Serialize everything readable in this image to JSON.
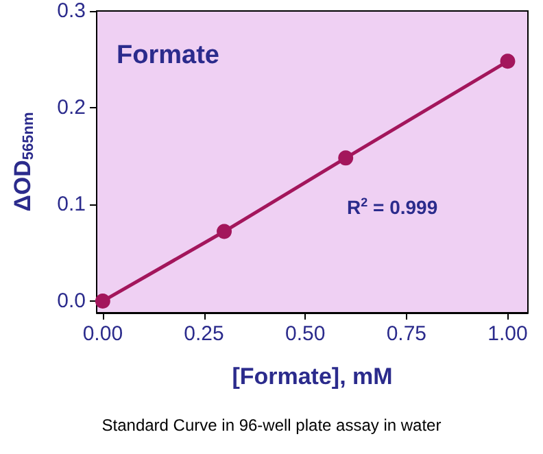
{
  "chart_data": {
    "type": "line",
    "title": "Formate",
    "xlabel": "[Formate], mM",
    "ylabel": "ΔOD$_{565nm}$",
    "annotations": [
      "R$^{2}$ = 0.999",
      "Standard Curve in 96-well plate assay in water"
    ],
    "x": [
      0,
      0.3,
      0.6,
      1.0
    ],
    "series": [
      {
        "color": "#a3165c",
        "values": [
          0,
          0.072,
          0.148,
          0.248
        ]
      }
    ],
    "xlim": [
      -0.015,
      1.05
    ],
    "xticks": [
      {
        "value": 0,
        "label": "0.00"
      },
      0.25,
      {
        "value": 0.5,
        "label": "0.50"
      },
      0.75,
      {
        "value": 1,
        "label": "1.00"
      }
    ],
    "ylim": [
      -0.012,
      0.3
    ],
    "yticks": [
      {
        "value": 0,
        "label": "0.0"
      },
      0.1,
      0.2,
      0.3
    ],
    "grid": false,
    "marker": "circle",
    "line_style": "solid"
  }
}
